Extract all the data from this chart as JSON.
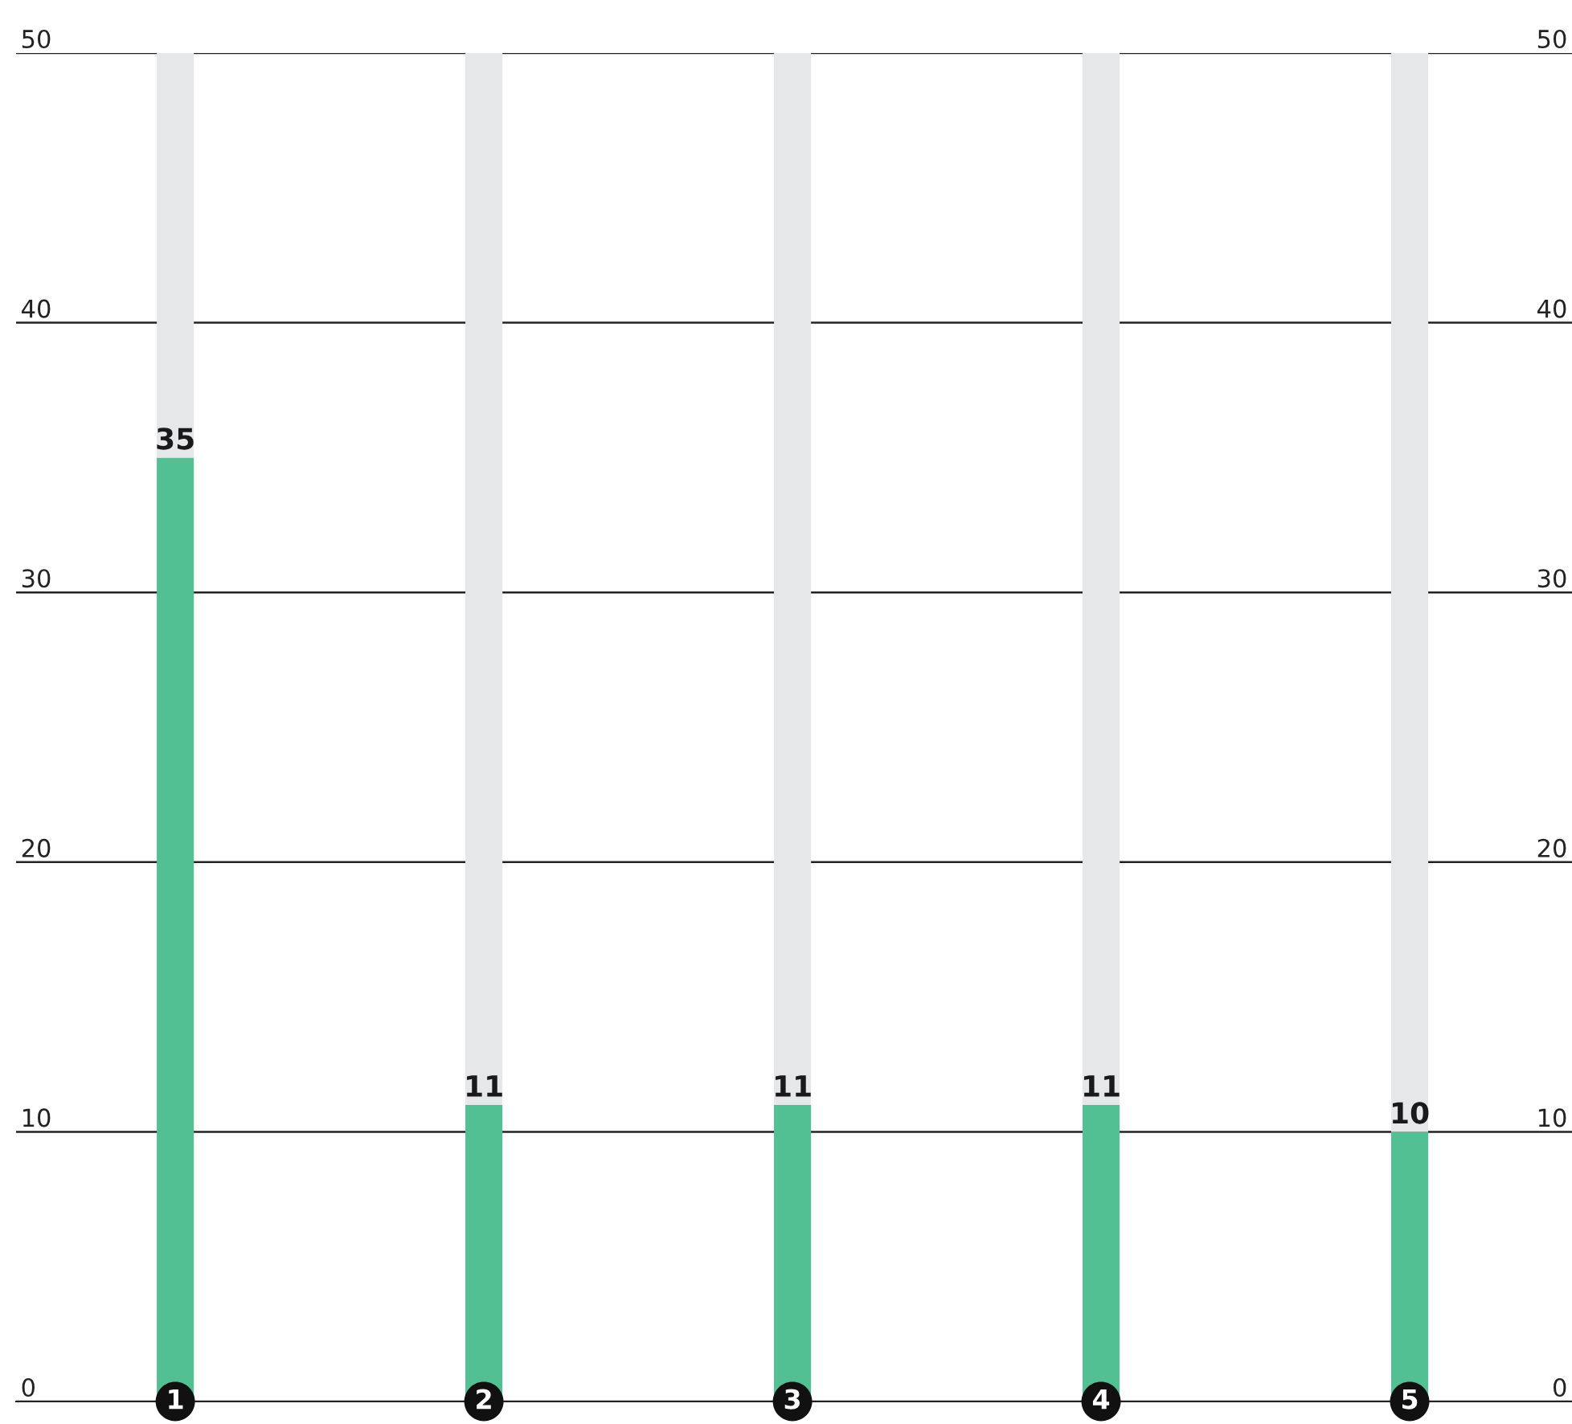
{
  "chart_data": {
    "type": "bar",
    "categories": [
      "1",
      "2",
      "3",
      "4",
      "5"
    ],
    "series": [
      {
        "color": "#52c093",
        "values": [
          35,
          11,
          11,
          11,
          10
        ],
        "value_labels": [
          "35",
          "11",
          "11",
          "11",
          "10"
        ]
      },
      {
        "color": "#e6e7e9",
        "values": [
          15,
          39,
          39,
          39,
          40
        ]
      }
    ],
    "stacked": true,
    "ylim": [
      0,
      50
    ],
    "yticks": [
      0,
      10,
      20,
      30,
      40,
      50
    ],
    "y2lim": [
      0,
      50
    ],
    "y2ticks": [
      0,
      10,
      20,
      30,
      40,
      50
    ],
    "grid": "y",
    "legend": false
  }
}
